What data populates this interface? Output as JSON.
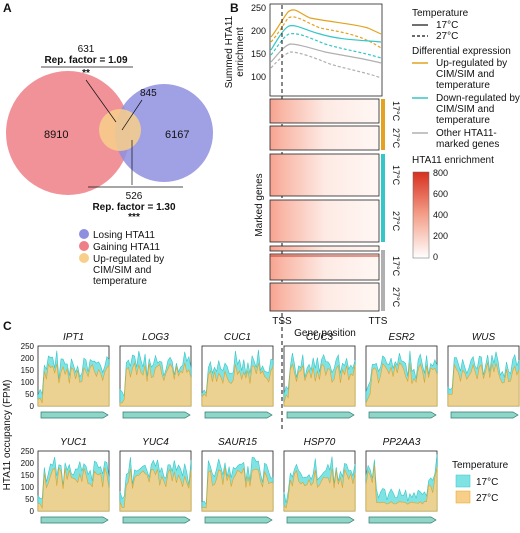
{
  "panel_a": {
    "letter": "A",
    "venn": {
      "left_count": "8910",
      "right_count": "6167",
      "overlap_top": "631",
      "overlap_top_factor": "Rep. factor = 1.09",
      "overlap_top_sig": "**",
      "middle_count": "845",
      "overlap_bottom": "526",
      "overlap_bottom_factor": "Rep. factor = 1.30",
      "overlap_bottom_sig": "***"
    },
    "legend": [
      {
        "label": "Losing HTA11",
        "color": "#8f8fe0"
      },
      {
        "label": "Gaining HTA11",
        "color": "#ef7f86"
      },
      {
        "label_lines": [
          "Up-regulated by",
          "CIM/SIM and",
          "temperature"
        ],
        "color": "#f7cf8a"
      }
    ]
  },
  "panel_b": {
    "letter": "B",
    "ylabel_lines": [
      "Summed HTA11",
      "enrichment"
    ],
    "yticks": [
      "250",
      "200",
      "150",
      "100"
    ],
    "heatmap_ylabel": "Marked genes",
    "xticks": [
      "TSS",
      "TTS"
    ],
    "xlabel": "Gene position",
    "row_labels": [
      "17°C",
      "27°C",
      "17°C",
      "27°C",
      "17°C",
      "27°C"
    ],
    "legend_temperature": {
      "title": "Temperature",
      "items": [
        "17°C",
        "27°C"
      ]
    },
    "legend_de": {
      "title": "Differential expression",
      "items": [
        {
          "lines": [
            "Up-regulated by",
            "CIM/SIM and",
            "temperature"
          ],
          "color": "#e3a21f"
        },
        {
          "lines": [
            "Down-regulated by",
            "CIM/SIM and",
            "temperature"
          ],
          "color": "#35c6c8"
        },
        {
          "lines": [
            "Other HTA11-",
            "marked genes"
          ],
          "color": "#b0b0b0"
        }
      ]
    },
    "colorbar": {
      "title": "HTA11 enrichment",
      "ticks": [
        "800",
        "600",
        "400",
        "200",
        "0"
      ]
    }
  },
  "panel_c": {
    "letter": "C",
    "ylabel": "HTA11 occupancy (FPM)",
    "yticks": [
      "250",
      "200",
      "150",
      "100",
      "50",
      "0"
    ],
    "genes_row1": [
      "IPT1",
      "LOG3",
      "CUC1",
      "CUC3",
      "ESR2",
      "WUS"
    ],
    "genes_row2": [
      "YUC1",
      "YUC4",
      "SAUR15",
      "HSP70",
      "PP2AA3"
    ],
    "legend": {
      "title": "Temperature",
      "items": [
        {
          "label": "17°C",
          "color": "#7fe3e3"
        },
        {
          "label": "27°C",
          "color": "#f7cf8a"
        }
      ]
    }
  },
  "colors": {
    "cyan": "#35c6c8",
    "orange": "#e3a21f",
    "grey": "#b0b0b0"
  }
}
